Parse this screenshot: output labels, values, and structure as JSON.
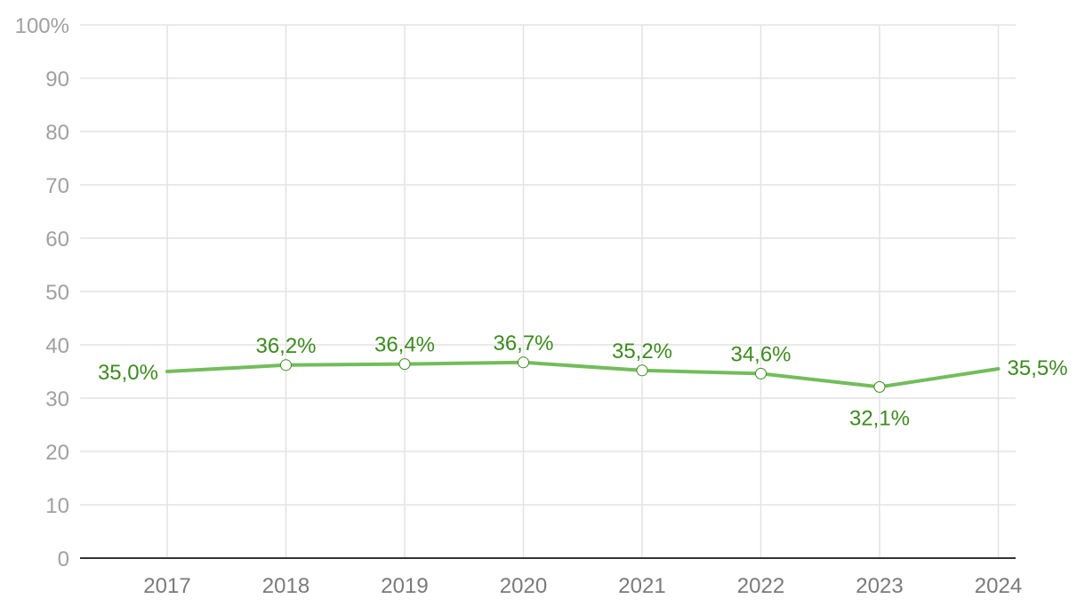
{
  "chart_data": {
    "type": "line",
    "categories": [
      "2017",
      "2018",
      "2019",
      "2020",
      "2021",
      "2022",
      "2023",
      "2024"
    ],
    "series": [
      {
        "values": [
          35.0,
          36.2,
          36.4,
          36.7,
          35.2,
          34.6,
          32.1,
          35.5
        ],
        "labels": [
          "35,0%",
          "36,2%",
          "36,4%",
          "36,7%",
          "35,2%",
          "34,6%",
          "32,1%",
          "35,5%"
        ]
      }
    ],
    "ylim": [
      0,
      100
    ],
    "yticks": [
      "0",
      "10",
      "20",
      "30",
      "40",
      "50",
      "60",
      "70",
      "80",
      "90",
      "100%"
    ],
    "grid": true,
    "colors": {
      "line": "#72bd5b",
      "label": "#3d8b1f",
      "grid": "#e3e3e3",
      "axis": "#333333"
    }
  }
}
